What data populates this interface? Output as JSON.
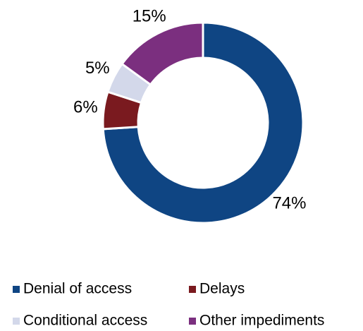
{
  "chart_data": {
    "type": "donut",
    "categories": [
      "Denial of access",
      "Delays",
      "Conditional access",
      "Other impediments"
    ],
    "values": [
      74,
      6,
      5,
      15
    ],
    "value_labels": [
      "74%",
      "6%",
      "5%",
      "15%"
    ],
    "colors": [
      "#0f4583",
      "#7a1a1f",
      "#d3d8ea",
      "#7b2f7f"
    ],
    "legend": "bottom"
  }
}
